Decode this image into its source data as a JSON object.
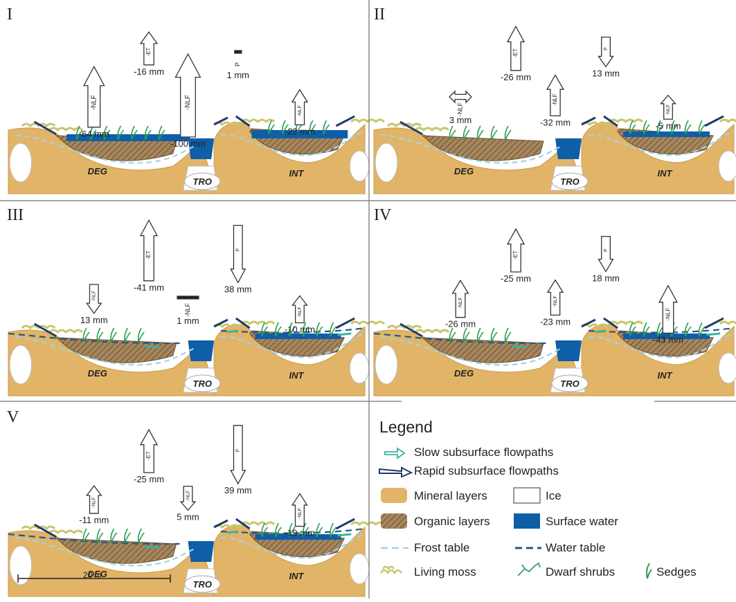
{
  "panels": [
    {
      "id": "I",
      "arrows": [
        {
          "key": "ET",
          "label": "-ET",
          "value": "-16 mm",
          "dir": "up"
        },
        {
          "key": "P",
          "label": "P",
          "value": "1 mm",
          "dir": "up"
        },
        {
          "key": "NLF_DEG",
          "label": "-NLF",
          "value": "-64 mm",
          "dir": "up"
        },
        {
          "key": "NLF_TRO",
          "label": "-NLF",
          "value": "-100 mm",
          "dir": "up"
        },
        {
          "key": "NLF_INT",
          "label": "-NLF",
          "value": "-23 mm",
          "dir": "up"
        }
      ]
    },
    {
      "id": "II",
      "arrows": [
        {
          "key": "ET",
          "label": "-ET",
          "value": "-26 mm",
          "dir": "up"
        },
        {
          "key": "P",
          "label": "P",
          "value": "13 mm",
          "dir": "down"
        },
        {
          "key": "NLF_DEG",
          "label": "-NLF",
          "value": "3 mm",
          "dir": "both"
        },
        {
          "key": "NLF_TRO",
          "label": "-NLF",
          "value": "-32 mm",
          "dir": "up"
        },
        {
          "key": "NLF_INT",
          "label": "-NLF",
          "value": "-5 mm",
          "dir": "up"
        }
      ]
    },
    {
      "id": "III",
      "arrows": [
        {
          "key": "ET",
          "label": "-ET",
          "value": "-41 mm",
          "dir": "up"
        },
        {
          "key": "P",
          "label": "P",
          "value": "38 mm",
          "dir": "down"
        },
        {
          "key": "NLF_DEG",
          "label": "-NLF",
          "value": "13 mm",
          "dir": "down"
        },
        {
          "key": "NLF_TRO",
          "label": "-NLF",
          "value": "1 mm",
          "dir": "flat"
        },
        {
          "key": "NLF_INT",
          "label": "-NLF",
          "value": "-10 mm",
          "dir": "up"
        }
      ]
    },
    {
      "id": "IV",
      "arrows": [
        {
          "key": "ET",
          "label": "-ET",
          "value": "-25 mm",
          "dir": "up"
        },
        {
          "key": "P",
          "label": "P",
          "value": "18 mm",
          "dir": "down"
        },
        {
          "key": "NLF_DEG",
          "label": "-NLF",
          "value": "-26 mm",
          "dir": "up"
        },
        {
          "key": "NLF_TRO",
          "label": "-NLF",
          "value": "-23 mm",
          "dir": "up"
        },
        {
          "key": "NLF_INT",
          "label": "-NLF",
          "value": "-43 mm",
          "dir": "up"
        }
      ]
    },
    {
      "id": "V",
      "arrows": [
        {
          "key": "ET",
          "label": "-ET",
          "value": "-25 mm",
          "dir": "up"
        },
        {
          "key": "P",
          "label": "P",
          "value": "39 mm",
          "dir": "down"
        },
        {
          "key": "NLF_DEG",
          "label": "-NLF",
          "value": "-11 mm",
          "dir": "up"
        },
        {
          "key": "NLF_TRO",
          "label": "-NLF",
          "value": "5 mm",
          "dir": "down"
        },
        {
          "key": "NLF_INT",
          "label": "-NLF",
          "value": "-19 mm",
          "dir": "up"
        }
      ]
    }
  ],
  "landforms": {
    "deg": "DEG",
    "tro": "TRO",
    "int": "INT"
  },
  "scale_bar": "20 m",
  "legend": {
    "title": "Legend",
    "items": [
      {
        "key": "slow",
        "label": "Slow subsurface flowpaths"
      },
      {
        "key": "rapid",
        "label": "Rapid subsurface flowpaths"
      },
      {
        "key": "mineral",
        "label": "Mineral layers"
      },
      {
        "key": "ice",
        "label": "Ice"
      },
      {
        "key": "organic",
        "label": "Organic layers"
      },
      {
        "key": "surface",
        "label": "Surface water"
      },
      {
        "key": "frost",
        "label": "Frost table"
      },
      {
        "key": "water",
        "label": "Water table"
      },
      {
        "key": "moss",
        "label": "Living moss"
      },
      {
        "key": "shrubs",
        "label": "Dwarf shrubs"
      },
      {
        "key": "sedges",
        "label": "Sedges"
      }
    ]
  },
  "colors": {
    "mineral": "#e2b467",
    "organic": "#a6865c",
    "surface_water": "#0e5ea8",
    "frost_table": "#9fd4e6",
    "water_table": "#1c5a8c",
    "slow_flow": "#3ab3a0",
    "rapid_flow": "#1f3b6a",
    "moss": "#c7c66b",
    "sedge": "#2e9c55"
  }
}
